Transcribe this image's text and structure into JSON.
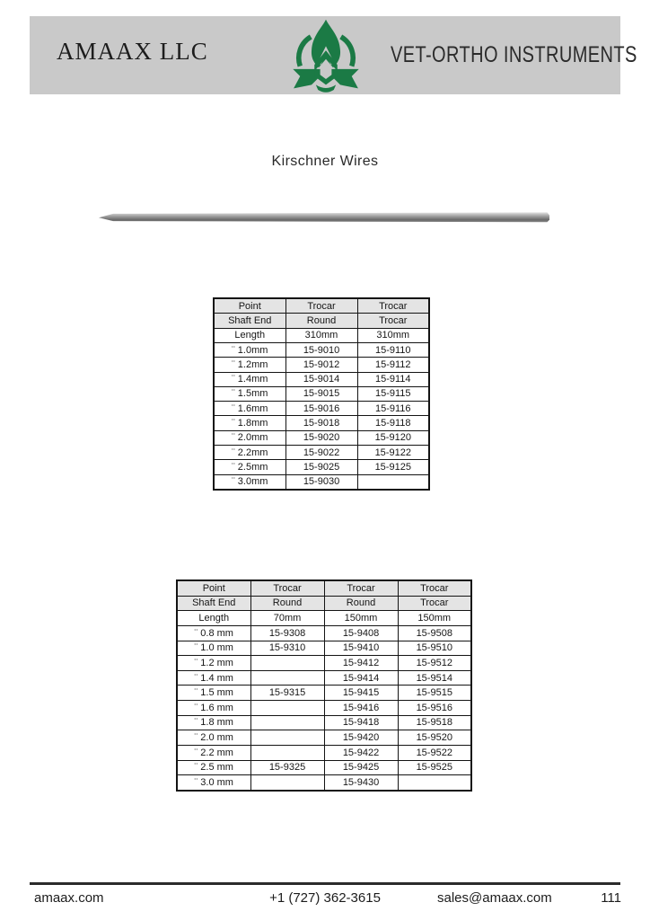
{
  "banner": {
    "company_name": "AMAAX LLC",
    "brand_name": "VET-ORTHO INSTRUMENTS",
    "logo": "amaax-monogram-logo",
    "colors": {
      "banner_bg": "#c9c9c9",
      "logo_green": "#1b7a45"
    }
  },
  "page": {
    "title": "Kirschner Wires",
    "product_image": "kirschner-wire-pin"
  },
  "tables": [
    {
      "shaded_header_rows": [
        [
          "Point",
          "Trocar",
          "Trocar"
        ],
        [
          "Shaft End",
          "Round",
          "Trocar"
        ]
      ],
      "rows": [
        [
          "Length",
          "310mm",
          "310mm"
        ],
        [
          "¨ 1.0mm",
          "15-9010",
          "15-9110"
        ],
        [
          "¨ 1.2mm",
          "15-9012",
          "15-9112"
        ],
        [
          "¨ 1.4mm",
          "15-9014",
          "15-9114"
        ],
        [
          "¨ 1.5mm",
          "15-9015",
          "15-9115"
        ],
        [
          "¨ 1.6mm",
          "15-9016",
          "15-9116"
        ],
        [
          "¨ 1.8mm",
          "15-9018",
          "15-9118"
        ],
        [
          "¨ 2.0mm",
          "15-9020",
          "15-9120"
        ],
        [
          "¨ 2.2mm",
          "15-9022",
          "15-9122"
        ],
        [
          "¨ 2.5mm",
          "15-9025",
          "15-9125"
        ],
        [
          "¨ 3.0mm",
          "15-9030",
          ""
        ]
      ]
    },
    {
      "shaded_header_rows": [
        [
          "Point",
          "Trocar",
          "Trocar",
          "Trocar"
        ],
        [
          "Shaft End",
          "Round",
          "Round",
          "Trocar"
        ]
      ],
      "rows": [
        [
          "Length",
          "70mm",
          "150mm",
          "150mm"
        ],
        [
          "¨ 0.8 mm",
          "15-9308",
          "15-9408",
          "15-9508"
        ],
        [
          "¨ 1.0 mm",
          "15-9310",
          "15-9410",
          "15-9510"
        ],
        [
          "¨ 1.2 mm",
          "",
          "15-9412",
          "15-9512"
        ],
        [
          "¨ 1.4 mm",
          "",
          "15-9414",
          "15-9514"
        ],
        [
          "¨ 1.5 mm",
          "15-9315",
          "15-9415",
          "15-9515"
        ],
        [
          "¨ 1.6 mm",
          "",
          "15-9416",
          "15-9516"
        ],
        [
          "¨ 1.8 mm",
          "",
          "15-9418",
          "15-9518"
        ],
        [
          "¨ 2.0 mm",
          "",
          "15-9420",
          "15-9520"
        ],
        [
          "¨ 2.2 mm",
          "",
          "15-9422",
          "15-9522"
        ],
        [
          "¨ 2.5 mm",
          "15-9325",
          "15-9425",
          "15-9525"
        ],
        [
          "¨ 3.0 mm",
          "",
          "15-9430",
          ""
        ]
      ]
    }
  ],
  "footer": {
    "website": "amaax.com",
    "phone": "+1 (727) 362-3615",
    "email": "sales@amaax.com",
    "page_number": "111"
  }
}
